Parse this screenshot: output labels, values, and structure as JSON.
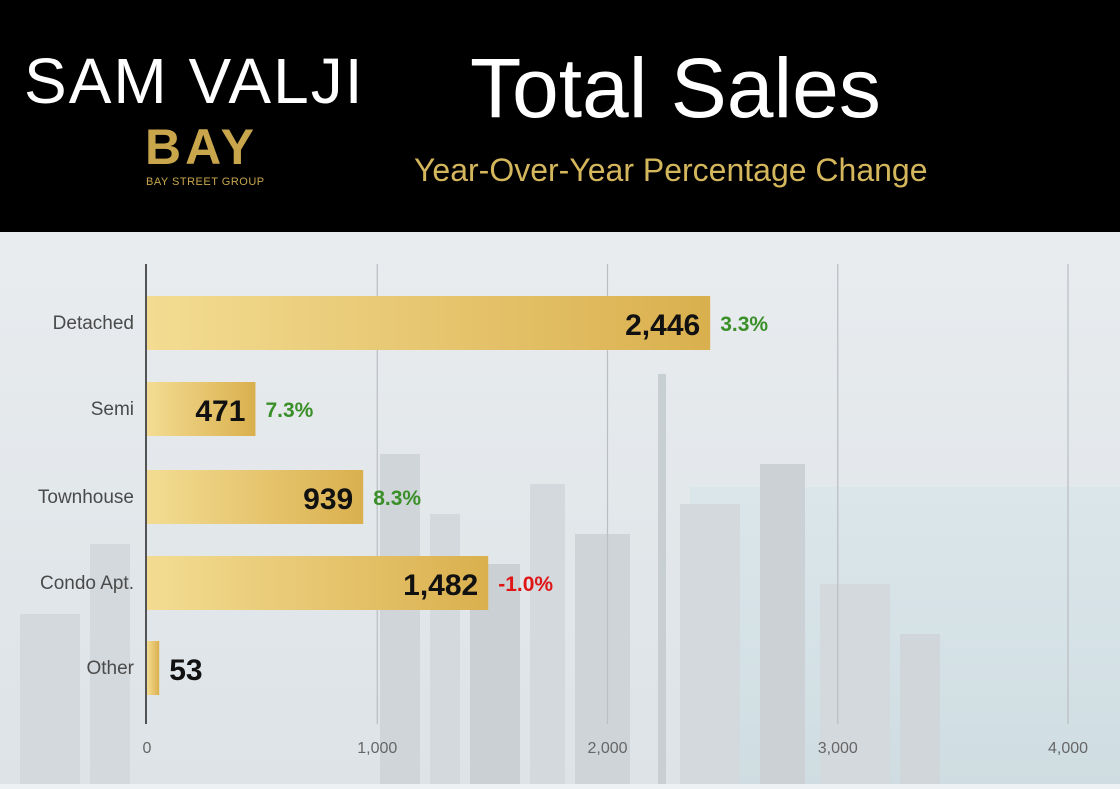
{
  "header": {
    "brand_name": "SAM VALJI",
    "logo_text": "BAY",
    "logo_subtext": "BAY STREET GROUP",
    "title": "Total Sales",
    "subtitle": "Year-Over-Year Percentage Change"
  },
  "colors": {
    "header_bg": "#000000",
    "title": "#ffffff",
    "gold": "#d4b65c",
    "bar_light": "#f3dc92",
    "bar_dark": "#dab04e",
    "positive": "#3a8f28",
    "negative": "#e01515"
  },
  "chart_data": {
    "type": "bar",
    "orientation": "horizontal",
    "title": "Total Sales",
    "subtitle": "Year-Over-Year Percentage Change",
    "categories": [
      "Detached",
      "Semi",
      "Townhouse",
      "Condo Apt.",
      "Other"
    ],
    "values": [
      2446,
      471,
      939,
      1482,
      53
    ],
    "value_labels": [
      "2,446",
      "471",
      "939",
      "1,482",
      "53"
    ],
    "yoy_change_labels": [
      "3.3%",
      "7.3%",
      "8.3%",
      "-1.0%",
      ""
    ],
    "yoy_change_values": [
      3.3,
      7.3,
      8.3,
      -1.0,
      null
    ],
    "xlim": [
      0,
      4000
    ],
    "xticks": [
      0,
      1000,
      2000,
      3000,
      4000
    ],
    "xtick_labels": [
      "0",
      "1,000",
      "2,000",
      "3,000",
      "4,000"
    ],
    "grid": "vertical"
  }
}
